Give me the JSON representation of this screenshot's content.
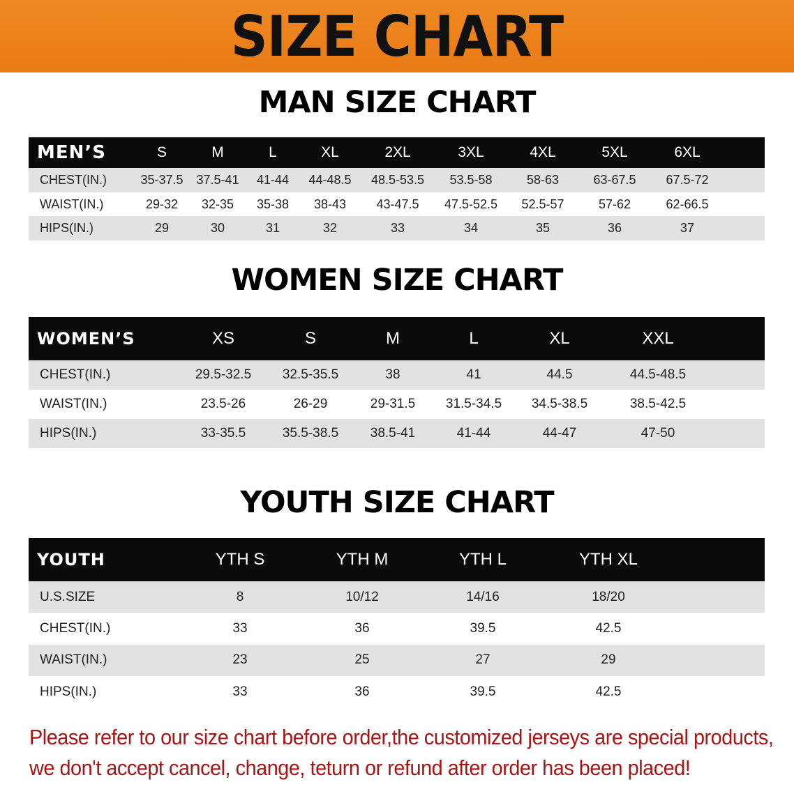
{
  "banner": {
    "title": "SIZE CHART",
    "color": "#ed8219"
  },
  "men": {
    "title": "MAN SIZE CHART",
    "header": [
      "MEN’S",
      "S",
      "M",
      "L",
      "XL",
      "2XL",
      "3XL",
      "4XL",
      "5XL",
      "6XL"
    ],
    "rows": [
      [
        "CHEST(IN.)",
        "35-37.5",
        "37.5-41",
        "41-44",
        "44-48.5",
        "48.5-53.5",
        "53.5-58",
        "58-63",
        "63-67.5",
        "67.5-72"
      ],
      [
        "WAIST(IN.)",
        "29-32",
        "32-35",
        "35-38",
        "38-43",
        "43-47.5",
        "47.5-52.5",
        "52.5-57",
        "57-62",
        "62-66.5"
      ],
      [
        "HIPS(IN.)",
        "29",
        "30",
        "31",
        "32",
        "33",
        "34",
        "35",
        "36",
        "37"
      ]
    ]
  },
  "women": {
    "title": "WOMEN SIZE CHART",
    "header": [
      "WOMEN’S",
      "XS",
      "S",
      "M",
      "L",
      "XL",
      "XXL"
    ],
    "rows": [
      [
        "CHEST(IN.)",
        "29.5-32.5",
        "32.5-35.5",
        "38",
        "41",
        "44.5",
        "44.5-48.5"
      ],
      [
        "WAIST(IN.)",
        "23.5-26",
        "26-29",
        "29-31.5",
        "31.5-34.5",
        "34.5-38.5",
        "38.5-42.5"
      ],
      [
        "HIPS(IN.)",
        "33-35.5",
        "35.5-38.5",
        "38.5-41",
        "41-44",
        "44-47",
        "47-50"
      ]
    ]
  },
  "youth": {
    "title": "YOUTH SIZE CHART",
    "header": [
      "YOUTH",
      "YTH S",
      "YTH M",
      "YTH L",
      "YTH XL"
    ],
    "rows": [
      [
        "U.S.SIZE",
        "8",
        "10/12",
        "14/16",
        "18/20"
      ],
      [
        "CHEST(IN.)",
        "33",
        "36",
        "39.5",
        "42.5"
      ],
      [
        "WAIST(IN.)",
        "23",
        "25",
        "27",
        "29"
      ],
      [
        "HIPS(IN.)",
        "33",
        "36",
        "39.5",
        "42.5"
      ]
    ]
  },
  "notice": {
    "line1": "Please refer to our size chart before order,the customized jerseys are special products,",
    "line2": "we don't accept cancel, change, teturn or refund after order has been placed!",
    "color": "#a51616"
  }
}
